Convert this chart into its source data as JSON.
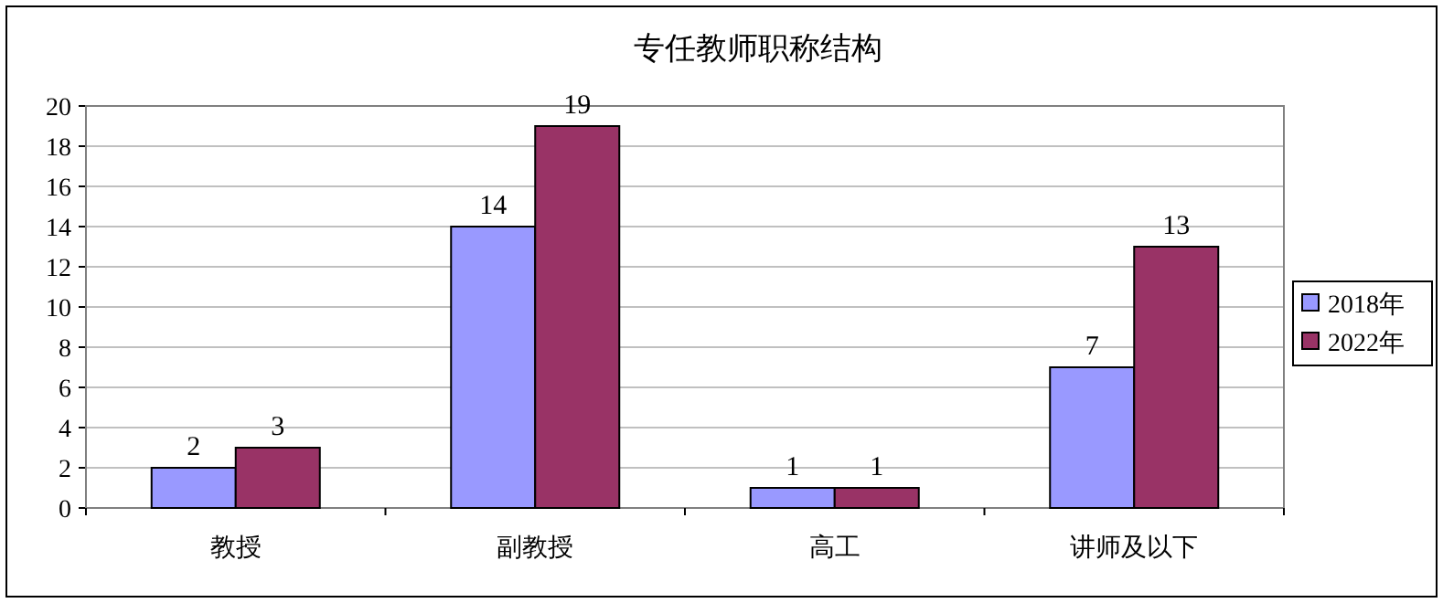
{
  "chart_data": {
    "type": "bar",
    "title": "专任教师职称结构",
    "categories": [
      "教授",
      "副教授",
      "高工",
      "讲师及以下"
    ],
    "series": [
      {
        "name": "2018年",
        "color": "#9999ff",
        "values": [
          2,
          14,
          1,
          7
        ]
      },
      {
        "name": "2022年",
        "color": "#993366",
        "values": [
          3,
          19,
          1,
          13
        ]
      }
    ],
    "ylim": [
      0,
      20
    ],
    "yticks": [
      0,
      2,
      4,
      6,
      8,
      10,
      12,
      14,
      16,
      18,
      20
    ],
    "grid": "y",
    "legend": "right",
    "data_labels": true
  }
}
